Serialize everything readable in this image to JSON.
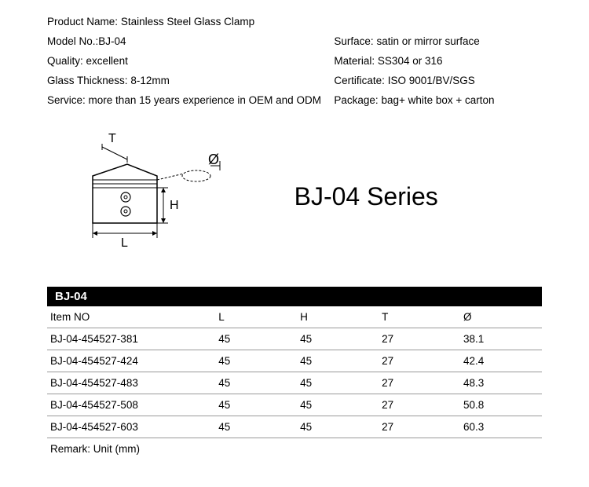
{
  "specs": {
    "productName": {
      "label": "Product Name:",
      "value": "Stainless Steel Glass Clamp"
    },
    "modelNo": {
      "label": "Model No.:",
      "value": "BJ-04"
    },
    "surface": {
      "label": "Surface:",
      "value": "satin or mirror surface"
    },
    "quality": {
      "label": "Quality:",
      "value": "excellent"
    },
    "material": {
      "label": "Material:",
      "value": "SS304 or 316"
    },
    "glassThickness": {
      "label": "Glass Thickness:",
      "value": "8-12mm"
    },
    "certificate": {
      "label": "Certificate:",
      "value": "ISO 9001/BV/SGS"
    },
    "service": {
      "label": "Service:",
      "value": "more than 15 years experience in OEM and ODM"
    },
    "package": {
      "label": "Package:",
      "value": "bag+ white box + carton"
    }
  },
  "diagram": {
    "labels": {
      "T": "T",
      "H": "H",
      "L": "L",
      "dia": "Ø"
    },
    "stroke": "#000000",
    "fill": "#ffffff"
  },
  "seriesTitle": "BJ-04 Series",
  "table": {
    "header": "BJ-04",
    "columns": [
      "Item NO",
      "L",
      "H",
      "T",
      "Ø"
    ],
    "rows": [
      [
        "BJ-04-454527-381",
        "45",
        "45",
        "27",
        "38.1"
      ],
      [
        "BJ-04-454527-424",
        "45",
        "45",
        "27",
        "42.4"
      ],
      [
        "BJ-04-454527-483",
        "45",
        "45",
        "27",
        "48.3"
      ],
      [
        "BJ-04-454527-508",
        "45",
        "45",
        "27",
        "50.8"
      ],
      [
        "BJ-04-454527-603",
        "45",
        "45",
        "27",
        "60.3"
      ]
    ],
    "remark": "Remark: Unit (mm)"
  }
}
